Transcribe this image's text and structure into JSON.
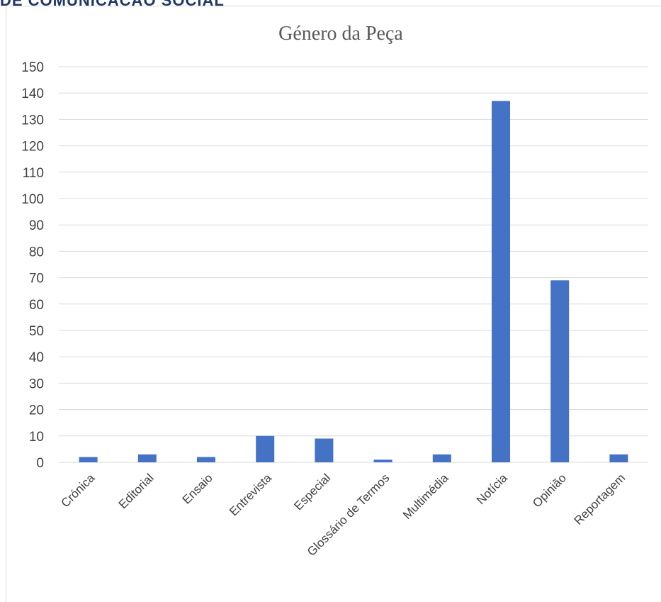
{
  "header": {
    "text": "DE COMUNICAÇÃO SOCIAL"
  },
  "chart_data": {
    "type": "bar",
    "title": "Género da Peça",
    "xlabel": "",
    "ylabel": "",
    "categories": [
      "Crónica",
      "Editorial",
      "Ensaio",
      "Entrevista",
      "Especial",
      "Glossário de Termos",
      "Multimédia",
      "Notícia",
      "Opinião",
      "Reportagem"
    ],
    "values": [
      2,
      3,
      2,
      10,
      9,
      1,
      3,
      137,
      69,
      3
    ],
    "ylim": [
      0,
      150
    ],
    "yticks": [
      0,
      10,
      20,
      30,
      40,
      50,
      60,
      70,
      80,
      90,
      100,
      110,
      120,
      130,
      140,
      150
    ],
    "grid": true,
    "legend": "none",
    "bar_color": "#4472c4",
    "grid_color": "#d9d9d9"
  }
}
